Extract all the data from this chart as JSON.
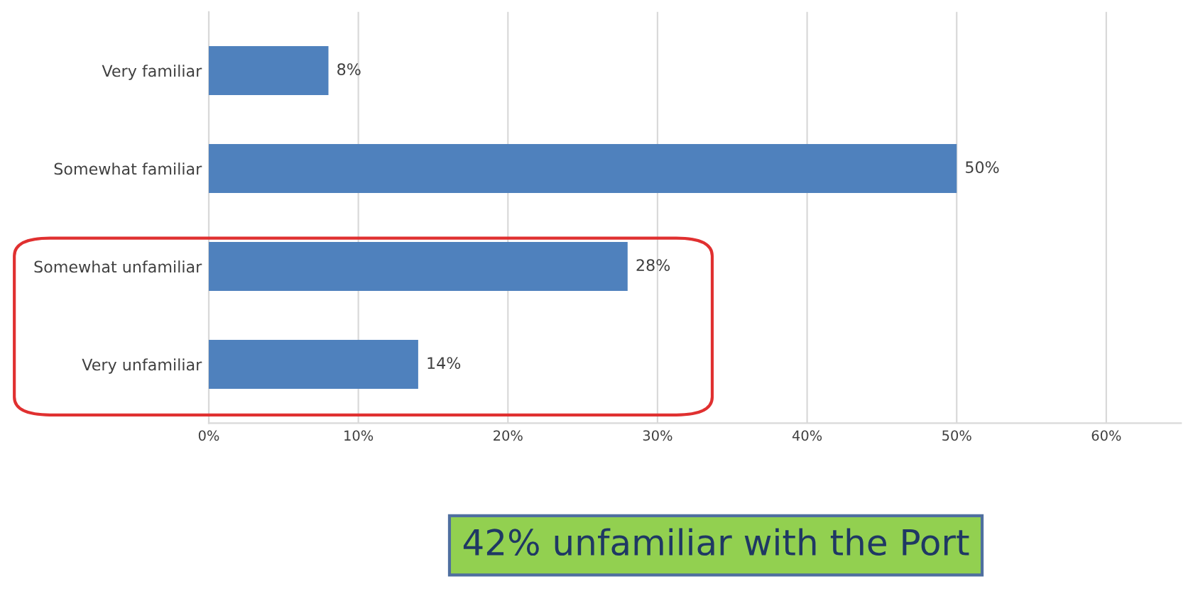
{
  "chart_data": {
    "type": "bar",
    "orientation": "horizontal",
    "categories": [
      "Very familiar",
      "Somewhat familiar",
      "Somewhat unfamiliar",
      "Very unfamiliar"
    ],
    "values": [
      8,
      50,
      28,
      14
    ],
    "value_labels": [
      "8%",
      "50%",
      "28%",
      "14%"
    ],
    "color": "#4f81bd",
    "xlim": [
      0,
      65
    ],
    "xticks": [
      {
        "value": 0,
        "label": "0%"
      },
      {
        "value": 10,
        "label": "10%"
      },
      {
        "value": 20,
        "label": "20%"
      },
      {
        "value": 30,
        "label": "30%"
      },
      {
        "value": 40,
        "label": "40%"
      },
      {
        "value": 50,
        "label": "50%"
      },
      {
        "value": 60,
        "label": "60%"
      }
    ],
    "grid": "x",
    "annotations": [
      "42% unfamiliar with the Port"
    ]
  }
}
